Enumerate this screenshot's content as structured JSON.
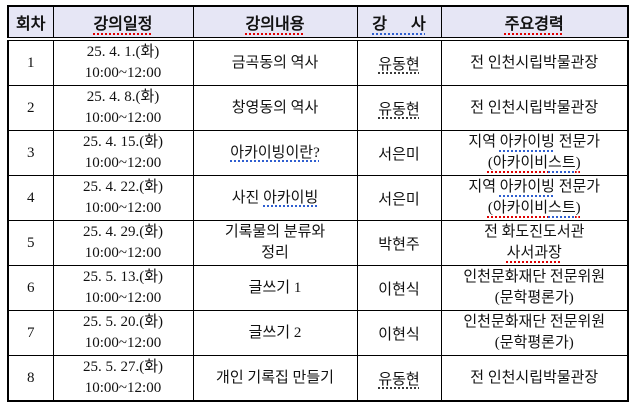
{
  "table": {
    "columns": [
      {
        "label": "회차"
      },
      {
        "label": "강의일정"
      },
      {
        "label": "강의내용"
      },
      {
        "label": "강      사"
      },
      {
        "label": "주요경력"
      }
    ],
    "rows": [
      {
        "session": "1",
        "date": [
          "25. 4. 1.(화)",
          "10:00~12:00"
        ],
        "content": [
          [
            {
              "t": "금곡동의 역사"
            }
          ]
        ],
        "instructor": [
          {
            "t": "유동현",
            "m": "dark"
          }
        ],
        "career": [
          [
            {
              "t": "전 인천시립박물관장"
            }
          ]
        ]
      },
      {
        "session": "2",
        "date": [
          "25. 4. 8.(화)",
          "10:00~12:00"
        ],
        "content": [
          [
            {
              "t": "창영동의 역사"
            }
          ]
        ],
        "instructor": [
          {
            "t": "유동현",
            "m": "dark"
          }
        ],
        "career": [
          [
            {
              "t": "전 인천시립박물관장"
            }
          ]
        ]
      },
      {
        "session": "3",
        "date": [
          "25. 4. 15.(화)",
          "10:00~12:00"
        ],
        "content": [
          [
            {
              "t": "아카이빙이란?",
              "m": "blue"
            }
          ]
        ],
        "instructor": [
          {
            "t": "서은미"
          }
        ],
        "career": [
          [
            {
              "t": "지역 "
            },
            {
              "t": "아카이빙",
              "m": "blue"
            },
            {
              "t": " 전문가"
            }
          ],
          [
            {
              "t": "(아카이비",
              "m": "red"
            },
            {
              "t": "스트",
              "m": "blue"
            },
            {
              "t": ")",
              "m": "red"
            }
          ]
        ]
      },
      {
        "session": "4",
        "date": [
          "25. 4. 22.(화)",
          "10:00~12:00"
        ],
        "content": [
          [
            {
              "t": "사진 "
            },
            {
              "t": "아카이빙",
              "m": "blue"
            }
          ]
        ],
        "instructor": [
          {
            "t": "서은미"
          }
        ],
        "career": [
          [
            {
              "t": "지역 "
            },
            {
              "t": "아카이빙",
              "m": "blue"
            },
            {
              "t": " 전문가"
            }
          ],
          [
            {
              "t": "(아카이비",
              "m": "red"
            },
            {
              "t": "스트",
              "m": "blue"
            },
            {
              "t": ")",
              "m": "red"
            }
          ]
        ]
      },
      {
        "session": "5",
        "date": [
          "25. 4. 29.(화)",
          "10:00~12:00"
        ],
        "content": [
          [
            {
              "t": "기록물의 분류와"
            }
          ],
          [
            {
              "t": "정리"
            }
          ]
        ],
        "instructor": [
          {
            "t": "박현주"
          }
        ],
        "career": [
          [
            {
              "t": "전 화도진도서관"
            }
          ],
          [
            {
              "t": "사서과장",
              "m": "red"
            }
          ]
        ]
      },
      {
        "session": "6",
        "date": [
          "25. 5. 13.(화)",
          "10:00~12:00"
        ],
        "content": [
          [
            {
              "t": "글쓰기 1"
            }
          ]
        ],
        "instructor": [
          {
            "t": "이현식"
          }
        ],
        "career": [
          [
            {
              "t": "인천문화재단 전문위원"
            }
          ],
          [
            {
              "t": "(문학평론가)"
            }
          ]
        ]
      },
      {
        "session": "7",
        "date": [
          "25. 5. 20.(화)",
          "10:00~12:00"
        ],
        "content": [
          [
            {
              "t": "글쓰기 2"
            }
          ]
        ],
        "instructor": [
          {
            "t": "이현식"
          }
        ],
        "career": [
          [
            {
              "t": "인천문화재단 전문위원"
            }
          ],
          [
            {
              "t": "(문학평론가)"
            }
          ]
        ]
      },
      {
        "session": "8",
        "date": [
          "25. 5. 27.(화)",
          "10:00~12:00"
        ],
        "content": [
          [
            {
              "t": "개인 기록집 만들기"
            }
          ]
        ],
        "instructor": [
          {
            "t": "유동현",
            "m": "dark"
          }
        ],
        "career": [
          [
            {
              "t": "전 인천시립박물관장"
            }
          ]
        ]
      }
    ]
  },
  "colors": {
    "header_background": "#e6e6f5",
    "border": "#000000",
    "spellcheck_red": "#e00000",
    "spellcheck_blue": "#2f5fd0",
    "text": "#111111"
  }
}
